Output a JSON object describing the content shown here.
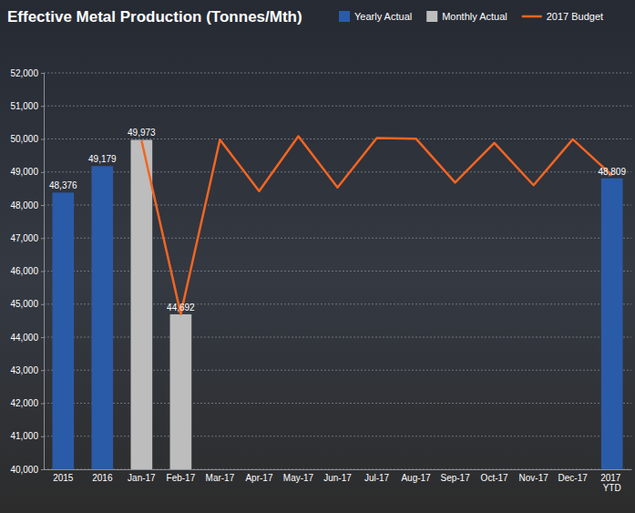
{
  "chart_data": {
    "type": "bar",
    "title": "Effective Metal Production (Tonnes/Mth)",
    "categories": [
      "2015",
      "2016",
      "Jan-17",
      "Feb-17",
      "Mar-17",
      "Apr-17",
      "May-17",
      "Jun-17",
      "Jul-17",
      "Aug-17",
      "Sep-17",
      "Oct-17",
      "Nov-17",
      "Dec-17",
      "2017 YTD"
    ],
    "series": [
      {
        "name": "Yearly Actual",
        "type": "bar",
        "color": "#2a5ba8",
        "values": [
          48376,
          49179,
          null,
          null,
          null,
          null,
          null,
          null,
          null,
          null,
          null,
          null,
          null,
          null,
          48809
        ],
        "value_labels": [
          "48,376",
          "49,179",
          null,
          null,
          null,
          null,
          null,
          null,
          null,
          null,
          null,
          null,
          null,
          null,
          "48,809"
        ]
      },
      {
        "name": "Monthly Actual",
        "type": "bar",
        "color": "#bdbdbd",
        "values": [
          null,
          null,
          49973,
          44692,
          null,
          null,
          null,
          null,
          null,
          null,
          null,
          null,
          null,
          null,
          null
        ],
        "value_labels": [
          null,
          null,
          "49,973",
          "44,692",
          null,
          null,
          null,
          null,
          null,
          null,
          null,
          null,
          null,
          null,
          null
        ]
      },
      {
        "name": "2017 Budget",
        "type": "line",
        "color": "#f26522",
        "values": [
          null,
          null,
          49950,
          44700,
          49980,
          48420,
          50080,
          48530,
          50030,
          50010,
          48680,
          49880,
          48600,
          49990,
          48900
        ]
      }
    ],
    "ylim": [
      40000,
      52000
    ],
    "yticks": [
      {
        "value": 40000,
        "label": "40,000"
      },
      {
        "value": 41000,
        "label": "41,000"
      },
      {
        "value": 42000,
        "label": "42,000"
      },
      {
        "value": 43000,
        "label": "43,000"
      },
      {
        "value": 44000,
        "label": "44,000"
      },
      {
        "value": 45000,
        "label": "45,000"
      },
      {
        "value": 46000,
        "label": "46,000"
      },
      {
        "value": 47000,
        "label": "47,000"
      },
      {
        "value": 48000,
        "label": "48,000"
      },
      {
        "value": 49000,
        "label": "49,000"
      },
      {
        "value": 50000,
        "label": "50,000"
      },
      {
        "value": 51000,
        "label": "51,000"
      },
      {
        "value": 52000,
        "label": "52,000"
      }
    ],
    "grid": true,
    "legend": "top",
    "data_labels": true
  }
}
